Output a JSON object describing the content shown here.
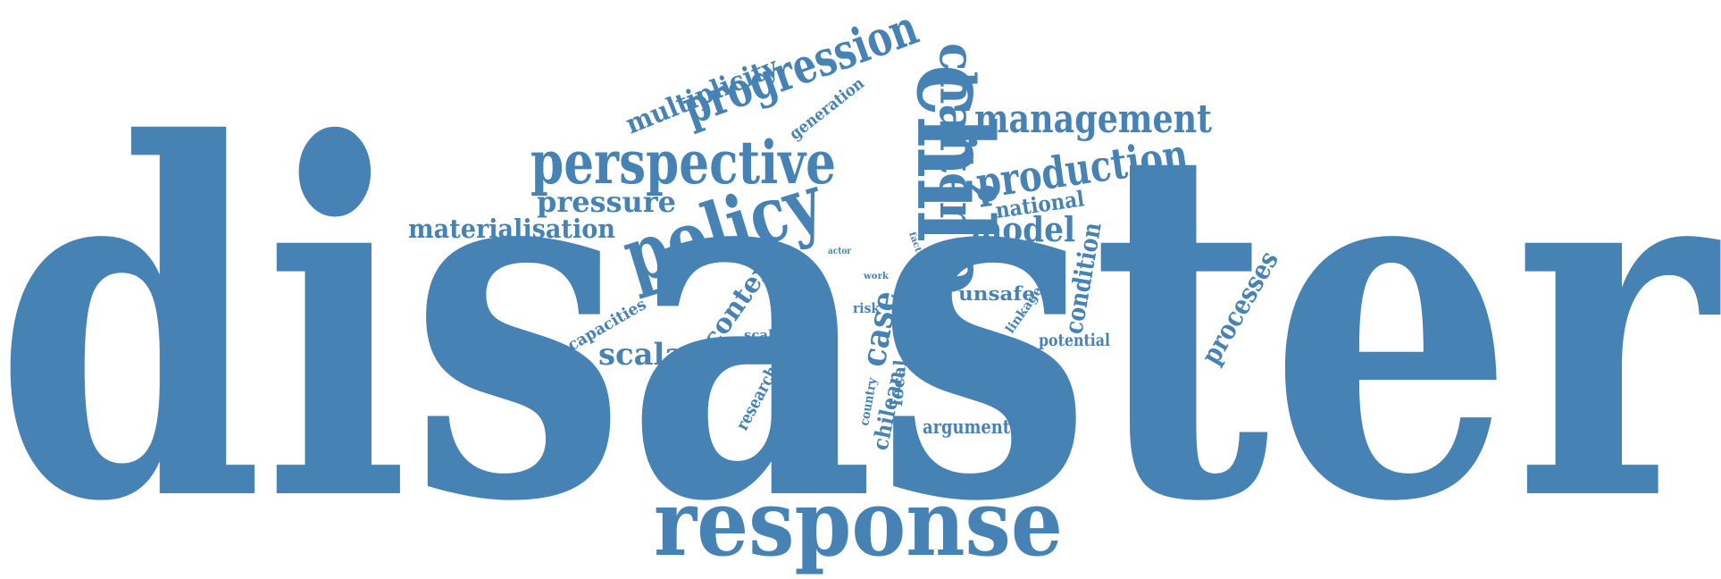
{
  "color": "#4682b4",
  "words": [
    {
      "id": "disaster",
      "text": "disaster"
    },
    {
      "id": "response",
      "text": "response"
    },
    {
      "id": "chile",
      "text": "chile"
    },
    {
      "id": "policy",
      "text": "policy"
    },
    {
      "id": "perspective",
      "text": "perspective"
    },
    {
      "id": "progression",
      "text": "progression"
    },
    {
      "id": "multiplicity",
      "text": "multiplicity"
    },
    {
      "id": "generation",
      "text": "generation"
    },
    {
      "id": "chaiten",
      "text": "chaitén"
    },
    {
      "id": "management",
      "text": "management"
    },
    {
      "id": "production",
      "text": "production"
    },
    {
      "id": "national",
      "text": "national"
    },
    {
      "id": "model",
      "text": "model"
    },
    {
      "id": "pressure",
      "text": "pressure"
    },
    {
      "id": "materialisation",
      "text": "materialisation"
    },
    {
      "id": "condition",
      "text": "condition"
    },
    {
      "id": "processes",
      "text": "processes"
    },
    {
      "id": "unsafe",
      "text": "unsafe"
    },
    {
      "id": "linkage",
      "text": "linkage"
    },
    {
      "id": "potential",
      "text": "potential"
    },
    {
      "id": "context",
      "text": "context"
    },
    {
      "id": "capacities",
      "text": "capacities"
    },
    {
      "id": "scalar",
      "text": "scalar"
    },
    {
      "id": "scale",
      "text": "scale"
    },
    {
      "id": "case",
      "text": "case"
    },
    {
      "id": "risk",
      "text": "risk"
    },
    {
      "id": "work",
      "text": "work"
    },
    {
      "id": "actor",
      "text": "actor"
    },
    {
      "id": "factor",
      "text": "factor"
    },
    {
      "id": "local",
      "text": "local"
    },
    {
      "id": "country",
      "text": "country"
    },
    {
      "id": "chilean",
      "text": "chilean"
    },
    {
      "id": "argument",
      "text": "argument"
    },
    {
      "id": "research",
      "text": "research"
    }
  ]
}
